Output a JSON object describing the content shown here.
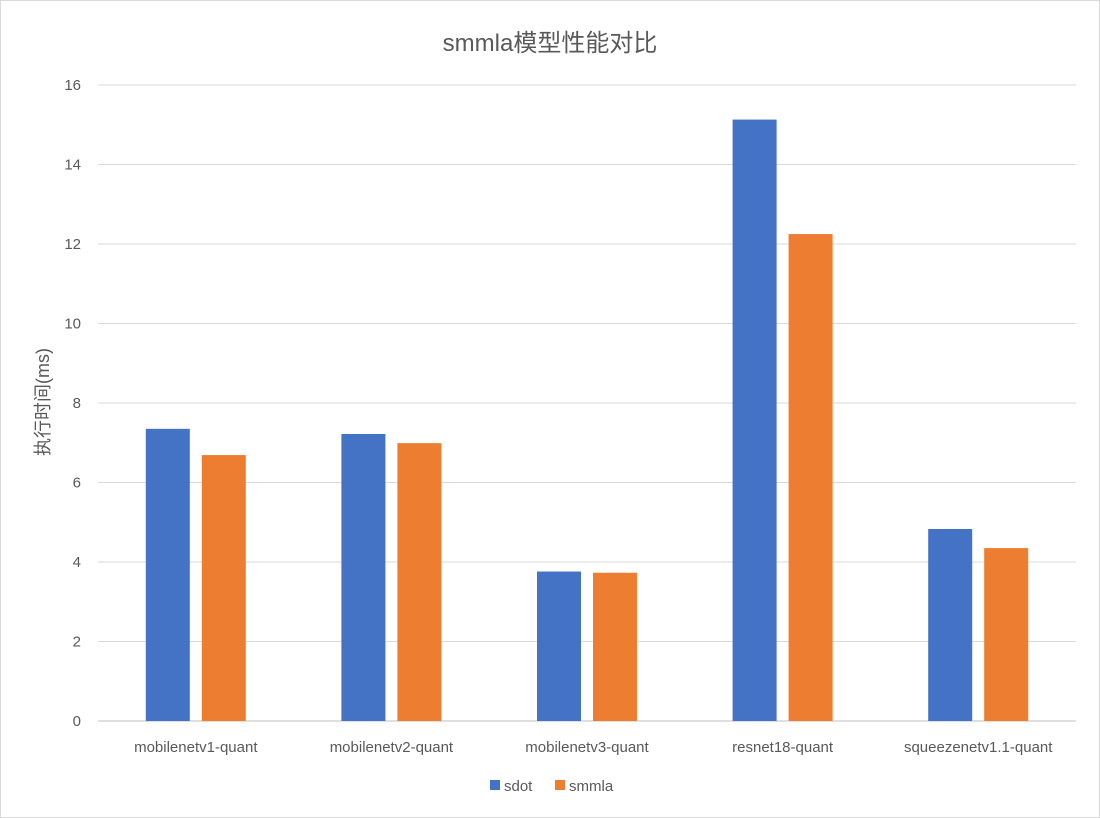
{
  "chart_data": {
    "type": "bar",
    "title": "smmla模型性能对比",
    "xlabel": "",
    "ylabel": "执行时间(ms)",
    "ylim": [
      0,
      16
    ],
    "yticks": [
      0,
      2,
      4,
      6,
      8,
      10,
      12,
      14,
      16
    ],
    "grid": true,
    "legend_position": "bottom",
    "categories": [
      "mobilenetv1-quant",
      "mobilenetv2-quant",
      "mobilenetv3-quant",
      "resnet18-quant",
      "squeezenetv1.1-quant"
    ],
    "series": [
      {
        "name": "sdot",
        "color": "#4472c4",
        "values": [
          7.35,
          7.22,
          3.76,
          15.13,
          4.83
        ]
      },
      {
        "name": "smmla",
        "color": "#ed7d31",
        "values": [
          6.69,
          6.99,
          3.73,
          12.25,
          4.35
        ]
      }
    ]
  }
}
